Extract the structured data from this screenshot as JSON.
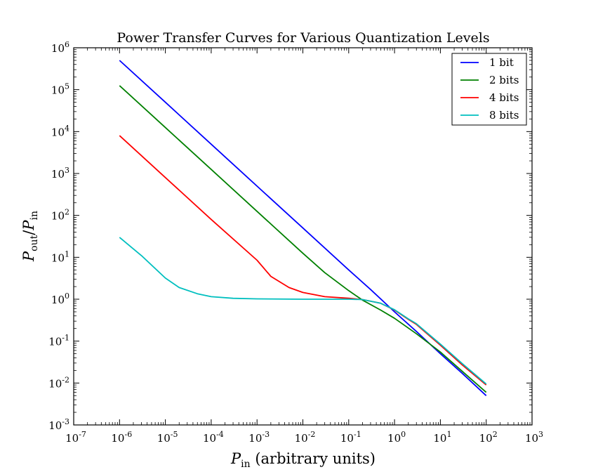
{
  "chart_data": {
    "type": "line",
    "title": "Power Transfer Curves for Various Quantization Levels",
    "xlabel": "P_in (arbitrary units)",
    "ylabel": "P_out/P_in",
    "xscale": "log",
    "yscale": "log",
    "xlim": [
      1e-07,
      1000.0
    ],
    "ylim": [
      0.001,
      1000000.0
    ],
    "x_ticks": [
      {
        "value": 1e-07,
        "base": "10",
        "exp": "-7"
      },
      {
        "value": 1e-06,
        "base": "10",
        "exp": "-6"
      },
      {
        "value": 1e-05,
        "base": "10",
        "exp": "-5"
      },
      {
        "value": 0.0001,
        "base": "10",
        "exp": "-4"
      },
      {
        "value": 0.001,
        "base": "10",
        "exp": "-3"
      },
      {
        "value": 0.01,
        "base": "10",
        "exp": "-2"
      },
      {
        "value": 0.1,
        "base": "10",
        "exp": "-1"
      },
      {
        "value": 1.0,
        "base": "10",
        "exp": "0"
      },
      {
        "value": 10.0,
        "base": "10",
        "exp": "1"
      },
      {
        "value": 100.0,
        "base": "10",
        "exp": "2"
      },
      {
        "value": 1000.0,
        "base": "10",
        "exp": "3"
      }
    ],
    "y_ticks": [
      {
        "value": 0.001,
        "base": "10",
        "exp": "-3"
      },
      {
        "value": 0.01,
        "base": "10",
        "exp": "-2"
      },
      {
        "value": 0.1,
        "base": "10",
        "exp": "-1"
      },
      {
        "value": 1.0,
        "base": "10",
        "exp": "0"
      },
      {
        "value": 10.0,
        "base": "10",
        "exp": "1"
      },
      {
        "value": 100.0,
        "base": "10",
        "exp": "2"
      },
      {
        "value": 1000.0,
        "base": "10",
        "exp": "3"
      },
      {
        "value": 10000.0,
        "base": "10",
        "exp": "4"
      },
      {
        "value": 100000.0,
        "base": "10",
        "exp": "5"
      },
      {
        "value": 1000000.0,
        "base": "10",
        "exp": "6"
      }
    ],
    "grid": false,
    "legend_position": "top-right",
    "series": [
      {
        "name": "1 bit",
        "color": "#0000ff",
        "x": [
          1e-06,
          1e-05,
          0.0001,
          0.001,
          0.01,
          0.1,
          0.3,
          1,
          3,
          10,
          30,
          100
        ],
        "y": [
          500000,
          50000,
          5000,
          500,
          50,
          5,
          1.7,
          0.5,
          0.17,
          0.05,
          0.017,
          0.005
        ]
      },
      {
        "name": "2 bits",
        "color": "#008000",
        "x": [
          1e-06,
          1e-05,
          0.0001,
          0.001,
          0.01,
          0.03,
          0.1,
          0.2,
          0.5,
          1,
          3,
          10,
          30,
          100
        ],
        "y": [
          125000,
          12500,
          1250,
          125,
          12.5,
          4.3,
          1.6,
          0.95,
          0.55,
          0.35,
          0.15,
          0.055,
          0.019,
          0.006
        ]
      },
      {
        "name": "4 bits",
        "color": "#ff0000",
        "x": [
          1e-06,
          1e-05,
          0.0001,
          0.001,
          0.002,
          0.005,
          0.01,
          0.03,
          0.1,
          0.2,
          0.5,
          1,
          2,
          3,
          10,
          30,
          100
        ],
        "y": [
          8000,
          800,
          80,
          8.5,
          3.5,
          1.9,
          1.45,
          1.15,
          1.05,
          0.98,
          0.8,
          0.55,
          0.33,
          0.25,
          0.08,
          0.027,
          0.009
        ]
      },
      {
        "name": "8 bits",
        "color": "#00bfbf",
        "x": [
          1e-06,
          3e-06,
          1e-05,
          2e-05,
          5e-05,
          0.0001,
          0.0003,
          0.001,
          0.01,
          0.1,
          0.2,
          0.5,
          1,
          2,
          3,
          10,
          30,
          100
        ],
        "y": [
          30,
          11,
          3.2,
          1.9,
          1.35,
          1.15,
          1.05,
          1.02,
          1.0,
          1.0,
          0.98,
          0.8,
          0.56,
          0.34,
          0.26,
          0.085,
          0.029,
          0.0095
        ]
      }
    ]
  }
}
